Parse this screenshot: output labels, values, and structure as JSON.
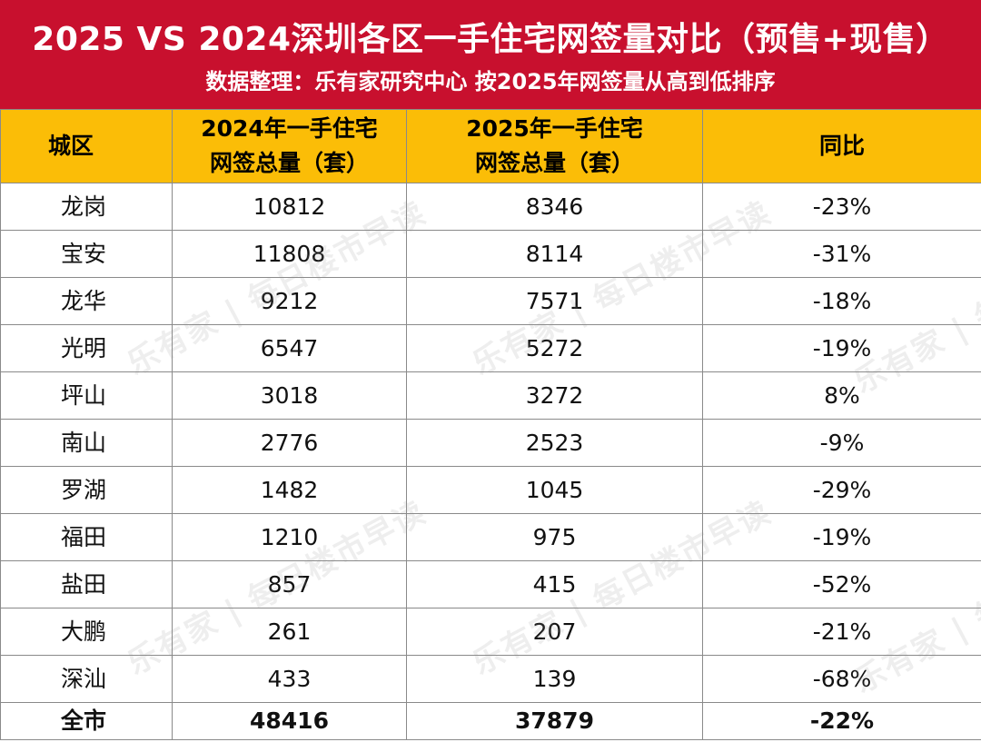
{
  "header": {
    "title": "2025 VS 2024深圳各区一手住宅网签量对比（预售+现售）",
    "subtitle": "数据整理：乐有家研究中心  按2025年网签量从高到低排序"
  },
  "table": {
    "columns": [
      "城区",
      "2024年一手住宅网签总量（套）",
      "2025年一手住宅网签总量（套）",
      "同比"
    ],
    "col1_line1": "2024年一手住宅",
    "col1_line2": "网签总量（套）",
    "col2_line1": "2025年一手住宅",
    "col2_line2": "网签总量（套）",
    "rows": [
      {
        "district": "龙岗",
        "y2024": "10812",
        "y2025": "8346",
        "yoy": "-23%"
      },
      {
        "district": "宝安",
        "y2024": "11808",
        "y2025": "8114",
        "yoy": "-31%"
      },
      {
        "district": "龙华",
        "y2024": "9212",
        "y2025": "7571",
        "yoy": "-18%"
      },
      {
        "district": "光明",
        "y2024": "6547",
        "y2025": "5272",
        "yoy": "-19%"
      },
      {
        "district": "坪山",
        "y2024": "3018",
        "y2025": "3272",
        "yoy": "8%"
      },
      {
        "district": "南山",
        "y2024": "2776",
        "y2025": "2523",
        "yoy": "-9%"
      },
      {
        "district": "罗湖",
        "y2024": "1482",
        "y2025": "1045",
        "yoy": "-29%"
      },
      {
        "district": "福田",
        "y2024": "1210",
        "y2025": "975",
        "yoy": "-19%"
      },
      {
        "district": "盐田",
        "y2024": "857",
        "y2025": "415",
        "yoy": "-52%"
      },
      {
        "district": "大鹏",
        "y2024": "261",
        "y2025": "207",
        "yoy": "-21%"
      },
      {
        "district": "深汕",
        "y2024": "433",
        "y2025": "139",
        "yoy": "-68%"
      }
    ],
    "total": {
      "district": "全市",
      "y2024": "48416",
      "y2025": "37879",
      "yoy": "-22%"
    }
  },
  "watermark": {
    "brand": "乐有家",
    "text": "每日楼市早读"
  }
}
